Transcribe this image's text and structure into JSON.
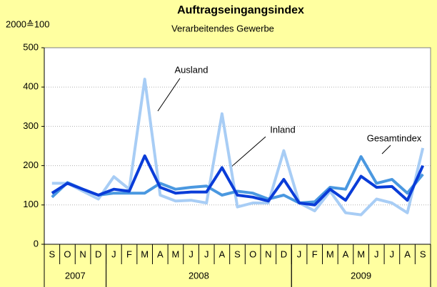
{
  "chart_data": {
    "type": "line",
    "title": "Auftragseingangsindex",
    "subtitle": "Verarbeitendes Gewerbe",
    "y_label": "2000≙100",
    "categories": [
      "S",
      "O",
      "N",
      "D",
      "J",
      "F",
      "M",
      "A",
      "M",
      "J",
      "J",
      "A",
      "S",
      "O",
      "N",
      "D",
      "J",
      "F",
      "M",
      "A",
      "M",
      "J",
      "J",
      "A",
      "S"
    ],
    "groups": [
      {
        "label": "2007",
        "count": 4
      },
      {
        "label": "2008",
        "count": 12
      },
      {
        "label": "2009",
        "count": 9
      }
    ],
    "series": [
      {
        "name": "Ausland",
        "color": "#a8cdf5",
        "values": [
          155,
          155,
          135,
          115,
          172,
          140,
          420,
          125,
          110,
          112,
          105,
          332,
          95,
          105,
          105,
          238,
          105,
          85,
          135,
          80,
          75,
          115,
          105,
          80,
          245
        ]
      },
      {
        "name": "Inland",
        "color": "#4a98e0",
        "values": [
          120,
          157,
          140,
          125,
          130,
          130,
          130,
          155,
          140,
          145,
          148,
          125,
          135,
          130,
          115,
          125,
          105,
          108,
          145,
          140,
          223,
          155,
          165,
          130,
          178
        ]
      },
      {
        "name": "Gesamtindex",
        "color": "#0a3cd8",
        "values": [
          130,
          155,
          140,
          125,
          140,
          135,
          225,
          145,
          130,
          133,
          133,
          195,
          125,
          120,
          110,
          165,
          105,
          100,
          140,
          112,
          173,
          145,
          147,
          112,
          200
        ]
      }
    ],
    "ylim": [
      0,
      500
    ],
    "yticks": [
      0,
      100,
      200,
      300,
      400,
      500
    ],
    "grid": true
  }
}
